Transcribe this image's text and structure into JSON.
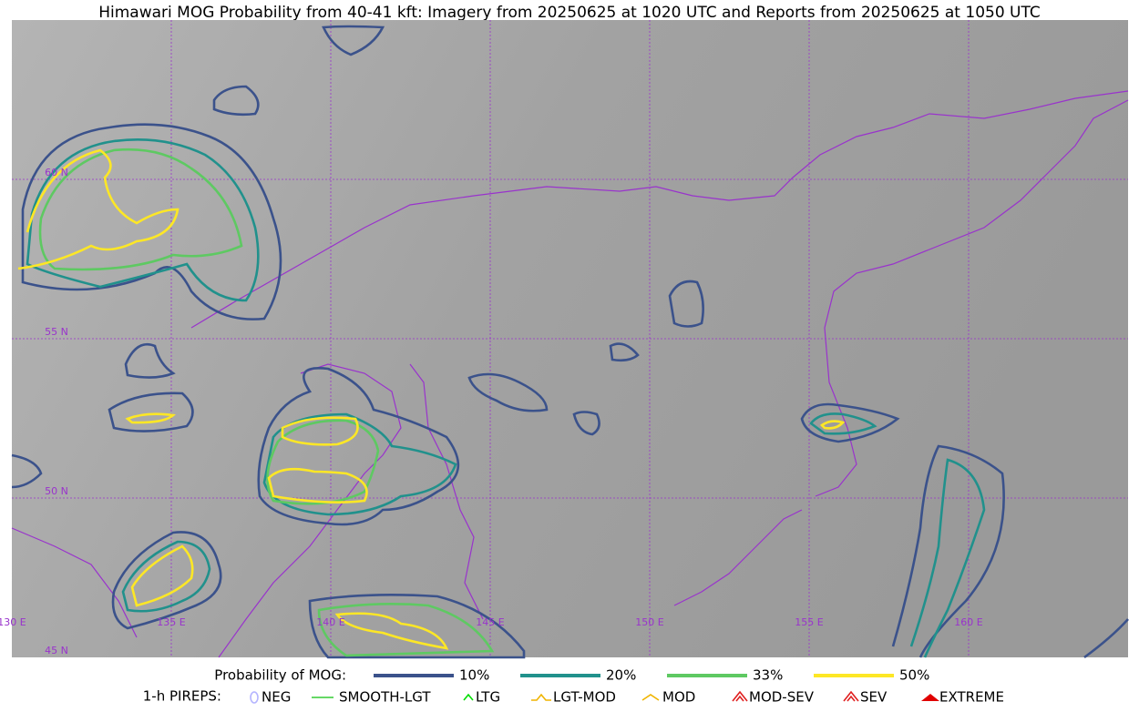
{
  "title": "Himawari MOG Probability from 40-41 kft: Imagery from 20250625 at 1020 UTC and Reports from 20250625 at 1050 UTC",
  "map": {
    "lat_labels": [
      "60 N",
      "55 N",
      "50 N",
      "45 N"
    ],
    "lon_labels": [
      "130 E",
      "135 E",
      "140 E",
      "145 E",
      "150 E",
      "155 E",
      "160 E"
    ]
  },
  "legend": {
    "title": "Probability of MOG:",
    "items": [
      {
        "label": "10%",
        "color": "#3b528b"
      },
      {
        "label": "20%",
        "color": "#21918c"
      },
      {
        "label": "33%",
        "color": "#5ec962"
      },
      {
        "label": "50%",
        "color": "#fde725"
      }
    ]
  },
  "pireps": {
    "title": "1-h PIREPS:",
    "items": [
      {
        "label": "NEG",
        "color": "#b4b4ff"
      },
      {
        "label": "SMOOTH-LGT",
        "color": "#33cc33"
      },
      {
        "label": "LTG",
        "color": "#00dd00"
      },
      {
        "label": "LGT-MOD",
        "color": "#f0b400"
      },
      {
        "label": "MOD",
        "color": "#f0b400"
      },
      {
        "label": "MOD-SEV",
        "color": "#e02020"
      },
      {
        "label": "SEV",
        "color": "#e02020"
      },
      {
        "label": "EXTREME",
        "color": "#e00000"
      }
    ]
  }
}
